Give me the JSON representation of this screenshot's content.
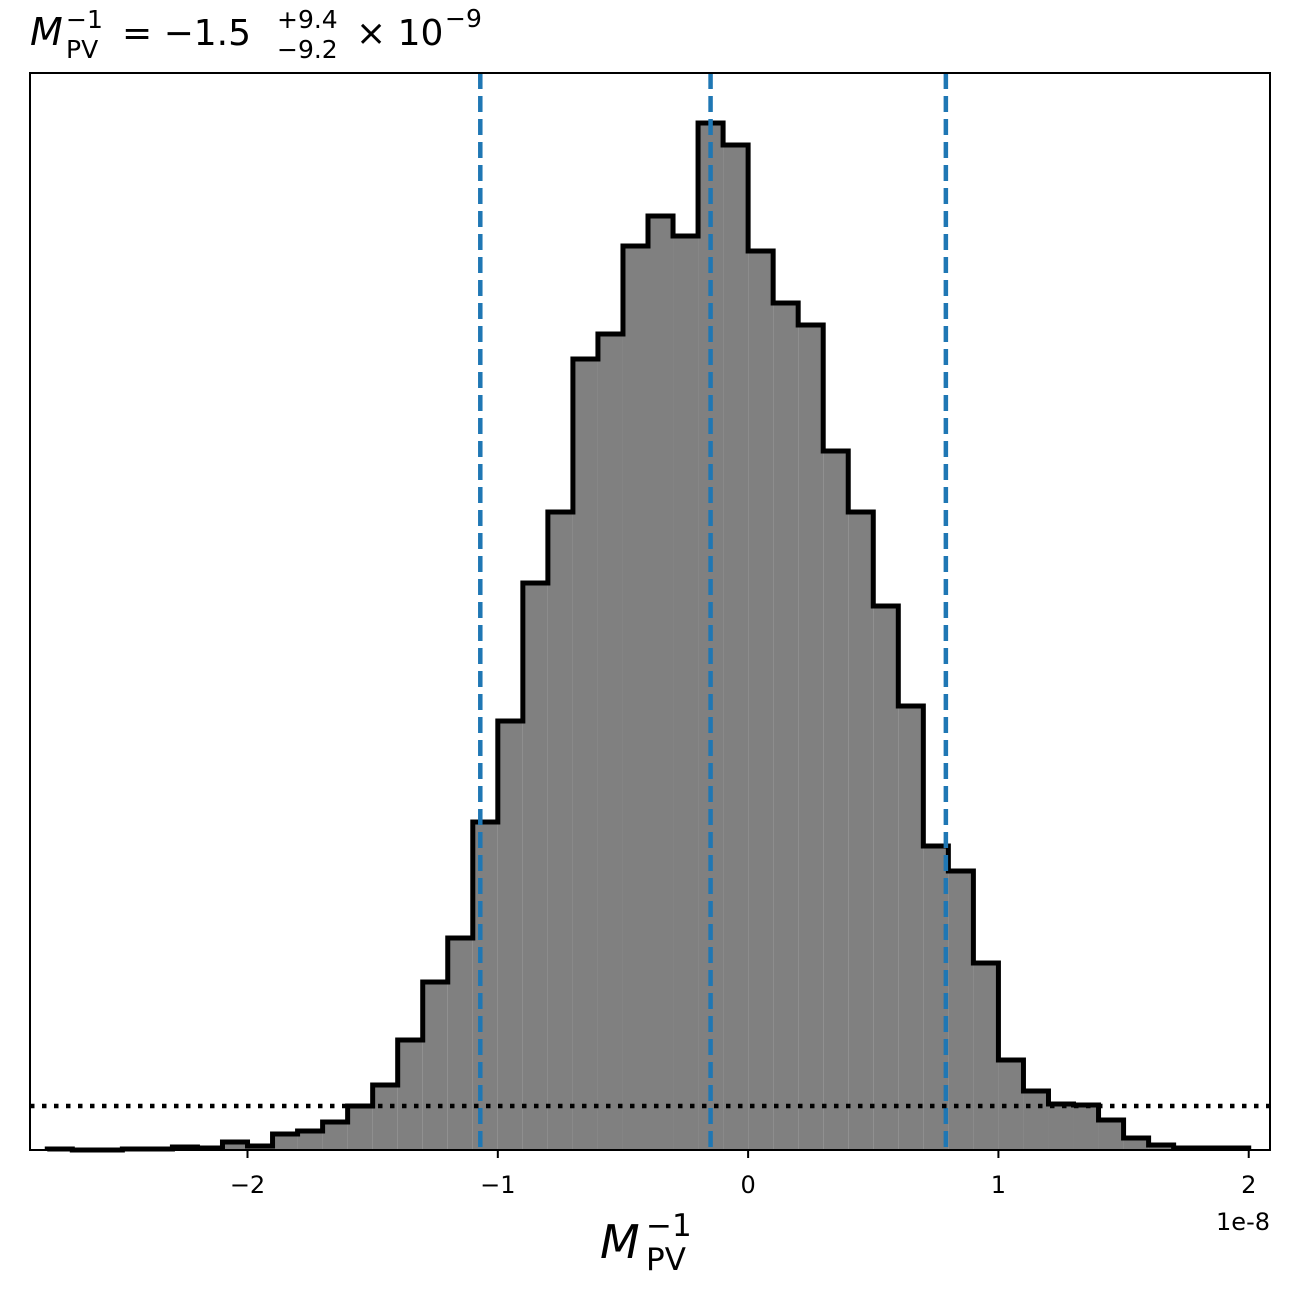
{
  "chart_data": {
    "type": "histogram",
    "title": {
      "main": "M",
      "sub": "PV",
      "sup": "−1",
      "eq": "= −1.5",
      "plus": "+9.4",
      "minus": "−9.2",
      "times": "× 10",
      "exp": "−9"
    },
    "x_label": {
      "main": "M",
      "sub": "PV",
      "sup": "−1"
    },
    "x_offset_label": "1e-8",
    "bins": [
      -2.8,
      -2.7,
      -2.6,
      -2.5,
      -2.4,
      -2.3,
      -2.2,
      -2.1,
      -2.0,
      -1.9,
      -1.8,
      -1.7,
      -1.6,
      -1.5,
      -1.4,
      -1.3,
      -1.2,
      -1.1,
      -1.0,
      -0.9,
      -0.8,
      -0.7,
      -0.6,
      -0.5,
      -0.4,
      -0.3,
      -0.2,
      -0.1,
      0.0,
      0.1,
      0.2,
      0.3,
      0.4,
      0.5,
      0.6,
      0.7,
      0.8,
      0.9,
      1.0,
      1.1,
      1.2,
      1.3,
      1.4,
      1.5,
      1.6,
      1.7,
      1.8,
      1.9,
      2.0
    ],
    "values": [
      1,
      0,
      0,
      1,
      1,
      3,
      2,
      8,
      4,
      16,
      19,
      28,
      44,
      65,
      110,
      168,
      212,
      328,
      429,
      567,
      638,
      791,
      816,
      904,
      934,
      914,
      1027,
      1005,
      899,
      847,
      825,
      699,
      638,
      544,
      444,
      304,
      279,
      187,
      90,
      59,
      46,
      45,
      30,
      12,
      5,
      2,
      2,
      2
    ],
    "color": "#808080",
    "vlines": [
      -1.07,
      -0.15,
      0.79
    ],
    "vline_color": "#1f77b4",
    "hline": 44,
    "xlim": [
      -2.869,
      2.085
    ],
    "ylim": [
      0,
      1077
    ],
    "xticks": [
      {
        "value": -2,
        "label": "−2"
      },
      {
        "value": -1,
        "label": "−1"
      },
      0,
      1,
      2
    ]
  }
}
